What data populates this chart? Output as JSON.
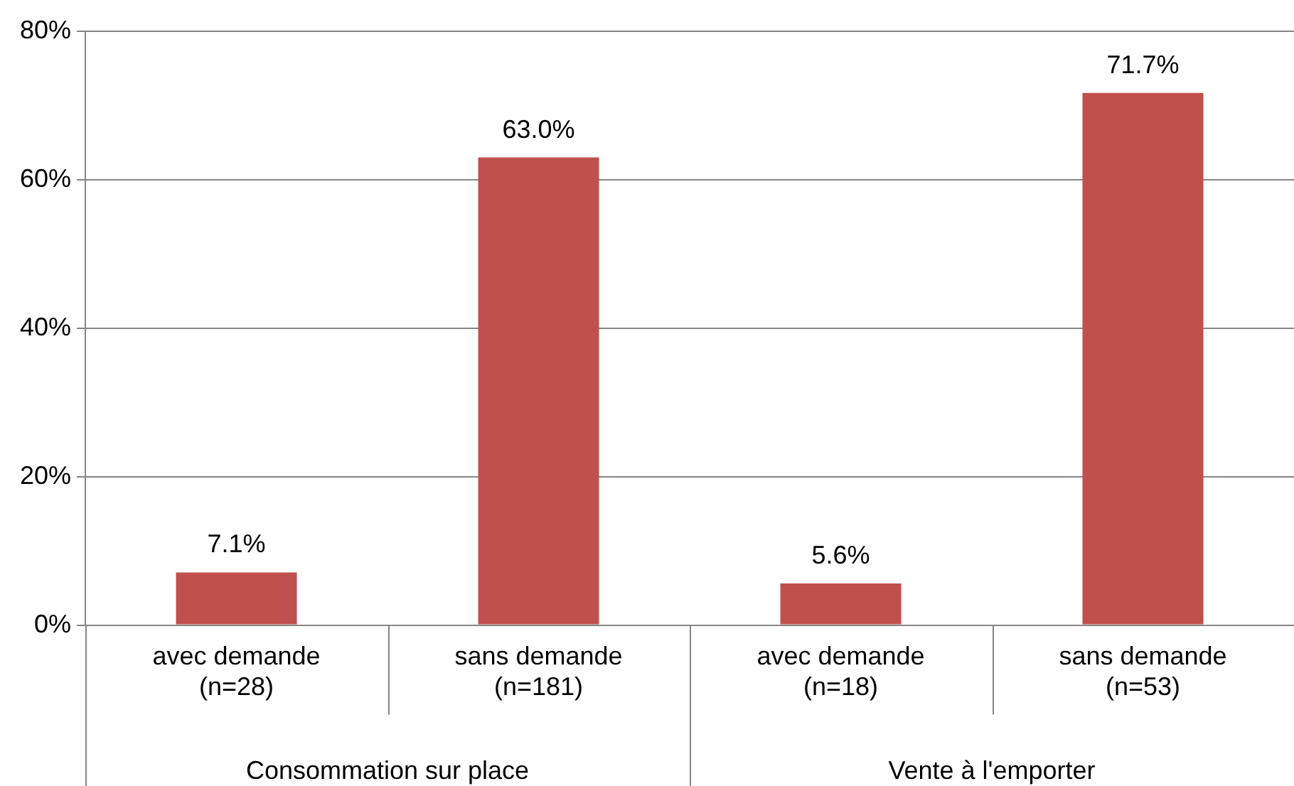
{
  "chart_data": {
    "type": "bar",
    "categories": [
      "avec demande\n(n=28)",
      "sans demande\n(n=181)",
      "avec demande\n(n=18)",
      "sans demande\n(n=53)"
    ],
    "values": [
      7.1,
      63.0,
      5.6,
      71.7
    ],
    "value_labels": [
      "7.1%",
      "63.0%",
      "5.6%",
      "71.7%"
    ],
    "color": "#c0504d",
    "ylim": [
      0,
      80
    ],
    "yticks": [
      {
        "value": 0,
        "label": "0%"
      },
      {
        "value": 20,
        "label": "20%"
      },
      {
        "value": 40,
        "label": "40%"
      },
      {
        "value": 60,
        "label": "60%"
      },
      {
        "value": 80,
        "label": "80%"
      }
    ],
    "grid": "y",
    "legend": false,
    "annotations": [
      "Consommation sur place",
      "Vente à l'emporter"
    ]
  }
}
